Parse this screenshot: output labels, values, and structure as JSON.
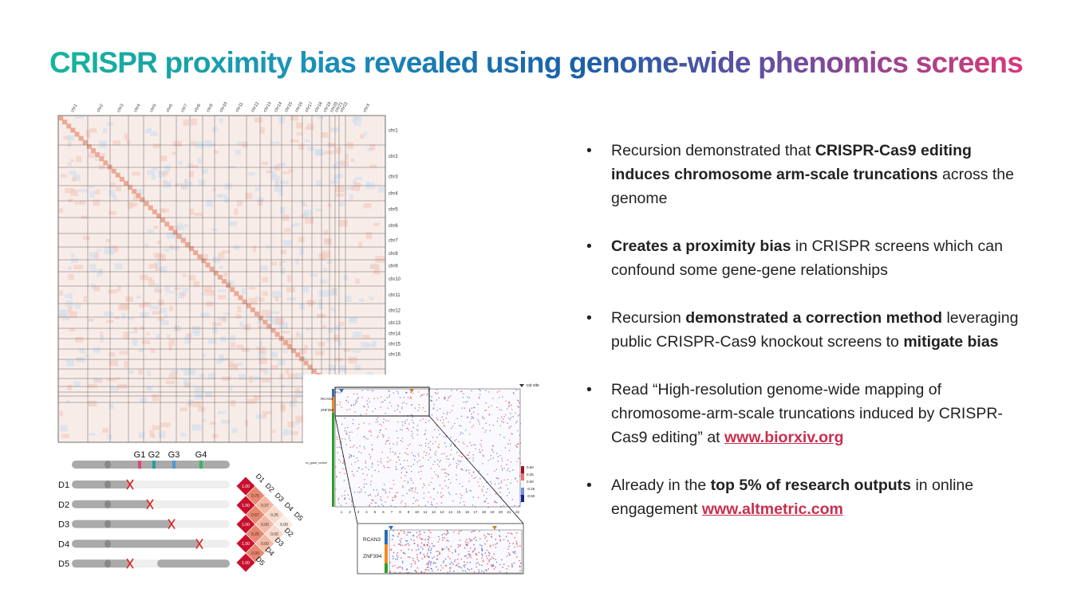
{
  "title": "CRISPR proximity bias revealed using genome-wide phenomics screens",
  "bullets": [
    {
      "runs": [
        {
          "text": "Recursion demonstrated that "
        },
        {
          "text": "CRISPR-Cas9 editing induces chromosome arm-scale truncations",
          "bold": true
        },
        {
          "text": " across the genome"
        }
      ]
    },
    {
      "runs": [
        {
          "text": "Creates a proximity bias",
          "bold": true
        },
        {
          "text": " in CRISPR screens which can confound some gene-gene relationships"
        }
      ]
    },
    {
      "runs": [
        {
          "text": "Recursion "
        },
        {
          "text": "demonstrated a correction method",
          "bold": true
        },
        {
          "text": " leveraging public CRISPR-Cas9 knockout screens to "
        },
        {
          "text": "mitigate bias",
          "bold": true
        }
      ]
    },
    {
      "runs": [
        {
          "text": "Read “High-resolution genome-wide mapping of chromosome-arm-scale truncations induced by CRISPR-Cas9 editing” at "
        },
        {
          "text": "www.biorxiv.org",
          "bold": true,
          "link": true
        }
      ]
    },
    {
      "runs": [
        {
          "text": "Already in the "
        },
        {
          "text": "top 5% of research outputs",
          "bold": true
        },
        {
          "text": " in online engagement "
        },
        {
          "text": "www.altmetric.com",
          "bold": true,
          "link": true
        }
      ]
    }
  ],
  "heatmap": {
    "col_labels": [
      "chr1",
      "chr2",
      "chr3",
      "chr4",
      "chr5",
      "chr6",
      "chr7",
      "chr8",
      "chr9",
      "chr10",
      "chr11",
      "chr12",
      "chr13",
      "chr14",
      "chr15",
      "chr16",
      "chr17",
      "chr18",
      "chr19",
      "chr20",
      "chr21",
      "chr22",
      "chrX"
    ],
    "row_labels": [
      "chr1",
      "chr2",
      "chr3",
      "chr4",
      "chr5",
      "chr6",
      "chr7",
      "chr8",
      "chr9",
      "chr10",
      "chr11",
      "chr12",
      "chr13",
      "chr14",
      "chr15",
      "chr16"
    ]
  },
  "guides": [
    "G1",
    "G2",
    "G3",
    "G4"
  ],
  "deletions": [
    "D1",
    "D2",
    "D3",
    "D4",
    "D5"
  ],
  "diamond": [
    [
      "1.00",
      "0.75",
      "0.37",
      "0.25",
      "0.00"
    ],
    [
      "1.00",
      "0.67",
      "0.00",
      "0.00"
    ],
    [
      "1.00",
      "0.25",
      "0.00"
    ],
    [
      "1.00",
      "0.00"
    ],
    [
      "1.00"
    ]
  ],
  "screen": {
    "legend": "cut site",
    "rows": [
      "RCAN3",
      "ZNF394"
    ],
    "control_label": "nc_guide_control",
    "colorbar": [
      "0.50",
      "0.25",
      "0.00",
      "-0.25",
      "-0.50"
    ],
    "x_labels": [
      "1",
      "2",
      "3",
      "4",
      "5",
      "6",
      "7",
      "8",
      "9",
      "10",
      "11",
      "12",
      "13",
      "14",
      "15",
      "16",
      "17",
      "18",
      "19",
      "20",
      "21",
      "22"
    ]
  },
  "zoom": {
    "rows": [
      "RCAN3",
      "ZNF394"
    ]
  }
}
